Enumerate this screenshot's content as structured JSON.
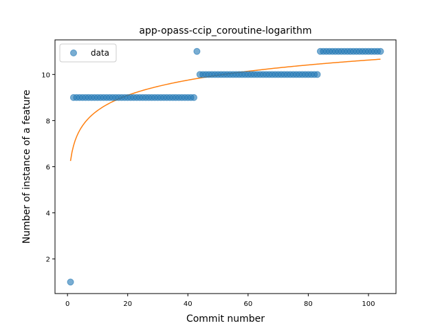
{
  "chart_data": {
    "type": "scatter",
    "title": "app-opass-ccip_coroutine-logarithm",
    "xlabel": "Commit number",
    "ylabel": "Number of instance of a feature",
    "xlim": [
      -4.15,
      109.15
    ],
    "ylim": [
      0.5,
      11.5
    ],
    "xticks": [
      0,
      20,
      40,
      60,
      80,
      100
    ],
    "yticks": [
      2,
      4,
      6,
      8,
      10
    ],
    "grid": false,
    "legend": {
      "position": "upper-left",
      "entries": [
        "data"
      ]
    },
    "series": [
      {
        "name": "data",
        "kind": "scatter",
        "color": "#1f77b4",
        "runs": [
          {
            "x_start": 1,
            "x_end": 1,
            "y": 1
          },
          {
            "x_start": 2,
            "x_end": 42,
            "y": 9
          },
          {
            "x_start": 43,
            "x_end": 43,
            "y": 11
          },
          {
            "x_start": 44,
            "x_end": 83,
            "y": 10
          },
          {
            "x_start": 84,
            "x_end": 104,
            "y": 11
          }
        ]
      },
      {
        "name": "",
        "kind": "line",
        "color": "#ff7f0e",
        "x_start": 1,
        "x_end": 104,
        "a": 6.25,
        "b": 0.95
      }
    ]
  }
}
